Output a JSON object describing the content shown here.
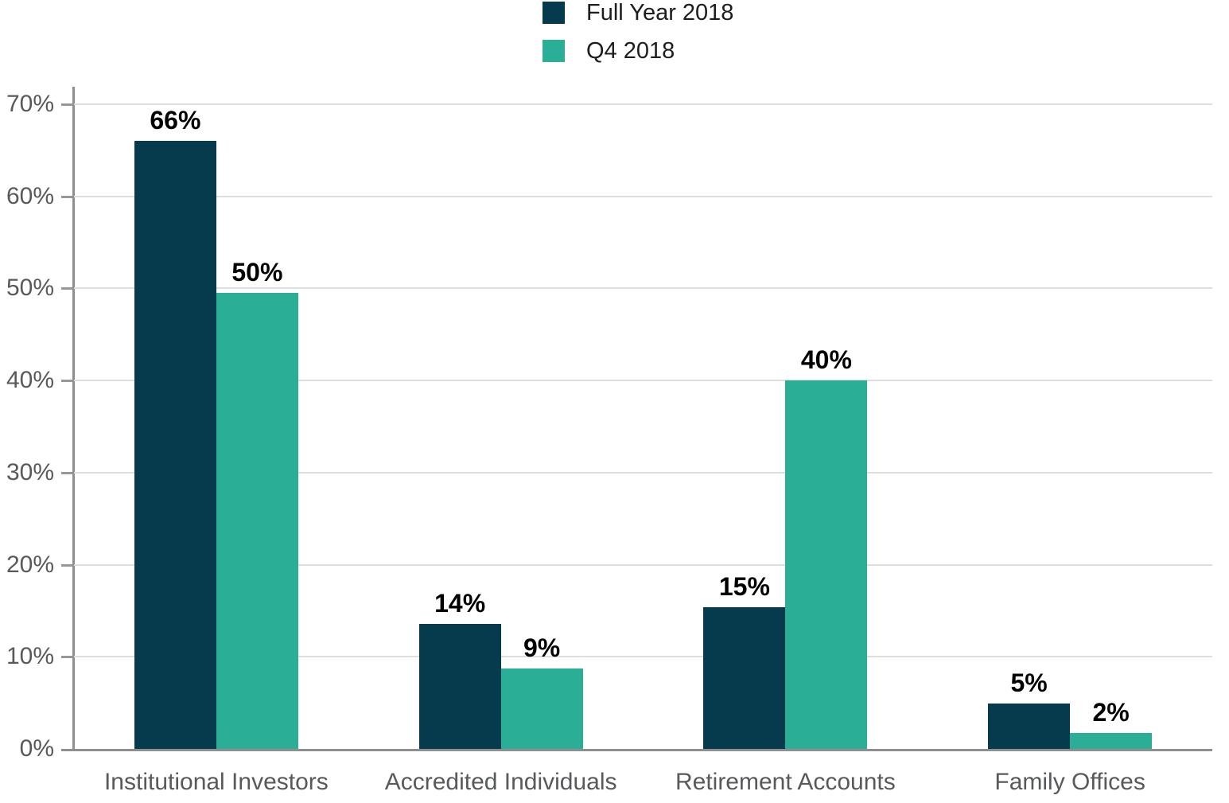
{
  "chart_data": {
    "type": "bar",
    "title": "",
    "categories": [
      "Institutional Investors",
      "Accredited Individuals",
      "Retirement Accounts",
      "Family Offices"
    ],
    "series": [
      {
        "name": "Full Year 2018",
        "color": "#063a4d",
        "values": [
          66,
          14,
          15,
          5
        ],
        "value_labels": [
          "66%",
          "14%",
          "15%",
          "5%"
        ],
        "drawn_values": [
          66,
          13.6,
          15.4,
          4.9
        ]
      },
      {
        "name": "Q4 2018",
        "color": "#2aaf96",
        "values": [
          50,
          9,
          40,
          2
        ],
        "value_labels": [
          "50%",
          "9%",
          "40%",
          "2%"
        ],
        "drawn_values": [
          49.5,
          8.7,
          40,
          1.7
        ]
      }
    ],
    "xlabel": "",
    "ylabel": "",
    "ylim": [
      0,
      70
    ],
    "yticks": [
      0,
      10,
      20,
      30,
      40,
      50,
      60,
      70
    ],
    "ytick_labels": [
      "0%",
      "10%",
      "20%",
      "30%",
      "40%",
      "50%",
      "60%",
      "70%"
    ],
    "grid": true,
    "legend_position": "top-center"
  },
  "colors": {
    "series_full_year": "#063a4d",
    "series_q4": "#2aaf96",
    "gridline": "#dedede",
    "axis": "#8f8f8f",
    "tick_label": "#58595b",
    "value_label": "#000000",
    "legend_text": "#1d1d1d",
    "background": "#ffffff"
  }
}
